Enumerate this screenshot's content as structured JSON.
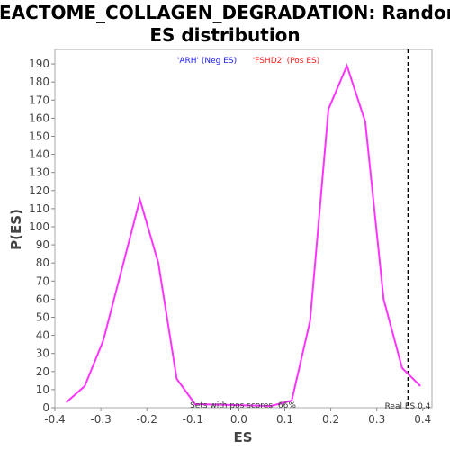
{
  "chart_data": {
    "type": "line",
    "title_line1": "REACTOME_COLLAGEN_DEGRADATION: Random",
    "title_line2": "ES distribution",
    "xlabel": "ES",
    "ylabel": "P(ES)",
    "xlim": [
      -0.4,
      0.42
    ],
    "ylim": [
      0,
      198
    ],
    "x_ticks": [
      "-0.4",
      "-0.3",
      "-0.2",
      "-0.1",
      "0.0",
      "0.1",
      "0.2",
      "0.3",
      "0.4"
    ],
    "y_ticks": [
      "0",
      "10",
      "20",
      "30",
      "40",
      "50",
      "60",
      "70",
      "80",
      "90",
      "100",
      "110",
      "120",
      "130",
      "140",
      "150",
      "160",
      "170",
      "180",
      "190"
    ],
    "series": [
      {
        "color": "#ff33ff",
        "x": [
          -0.375,
          -0.335,
          -0.295,
          -0.255,
          -0.215,
          -0.175,
          -0.135,
          -0.095,
          0.07,
          0.115,
          0.155,
          0.195,
          0.235,
          0.275,
          0.315,
          0.355,
          0.395
        ],
        "y": [
          3,
          12,
          37,
          76,
          115,
          80,
          16,
          2,
          1,
          4,
          48,
          165,
          189,
          158,
          60,
          22,
          12
        ]
      }
    ],
    "real_es": {
      "x": 0.368,
      "label": "Real ES 0.4",
      "color": "#000000"
    },
    "annotations": {
      "neg_label": "'ARH' (Neg ES)",
      "neg_color": "#1a1aff",
      "pos_label": "'FSHD2' (Pos ES)",
      "pos_color": "#ff1a1a",
      "sets_label": "Sets with pos scores: 66%"
    },
    "grid": false
  }
}
